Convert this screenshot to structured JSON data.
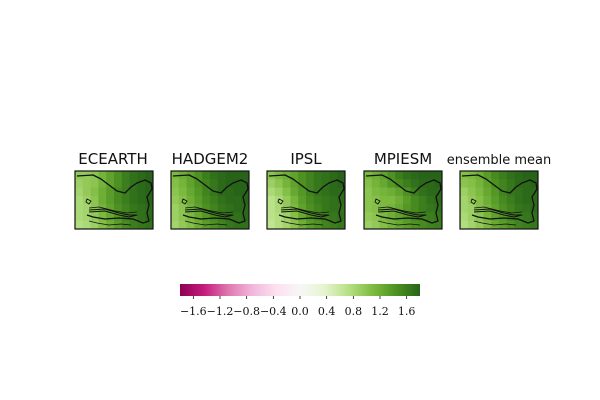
{
  "chart_data": {
    "type": "heatmap",
    "panels": [
      {
        "title": "ECEARTH",
        "grid": [
          [
            0.95,
            0.95,
            1.0,
            1.15,
            1.3,
            1.45,
            1.6,
            1.7,
            1.75,
            1.8
          ],
          [
            0.9,
            0.95,
            1.0,
            1.15,
            1.3,
            1.45,
            1.6,
            1.7,
            1.75,
            1.8
          ],
          [
            0.85,
            0.95,
            1.05,
            1.2,
            1.35,
            1.5,
            1.6,
            1.7,
            1.75,
            1.8
          ],
          [
            0.8,
            0.9,
            1.0,
            1.2,
            1.35,
            1.5,
            1.6,
            1.7,
            1.75,
            1.8
          ],
          [
            0.8,
            0.85,
            1.0,
            1.15,
            1.3,
            1.45,
            1.55,
            1.65,
            1.7,
            1.75
          ],
          [
            0.8,
            0.85,
            0.95,
            1.1,
            1.25,
            1.4,
            1.55,
            1.6,
            1.7,
            1.75
          ],
          [
            0.75,
            0.8,
            0.9,
            1.05,
            1.2,
            1.35,
            1.5,
            1.6,
            1.65,
            1.7
          ]
        ]
      },
      {
        "title": "HADGEM2",
        "grid": [
          [
            1.1,
            1.2,
            1.3,
            1.45,
            1.6,
            1.7,
            1.75,
            1.8,
            1.8,
            1.8
          ],
          [
            1.05,
            1.15,
            1.3,
            1.45,
            1.55,
            1.65,
            1.75,
            1.8,
            1.8,
            1.8
          ],
          [
            1.0,
            1.1,
            1.25,
            1.4,
            1.55,
            1.65,
            1.75,
            1.75,
            1.8,
            1.8
          ],
          [
            0.95,
            1.05,
            1.2,
            1.35,
            1.5,
            1.6,
            1.7,
            1.75,
            1.75,
            1.8
          ],
          [
            0.9,
            1.0,
            1.15,
            1.3,
            1.45,
            1.55,
            1.65,
            1.7,
            1.75,
            1.75
          ],
          [
            0.9,
            1.0,
            1.1,
            1.25,
            1.4,
            1.5,
            1.6,
            1.7,
            1.7,
            1.75
          ],
          [
            0.85,
            0.95,
            1.05,
            1.2,
            1.35,
            1.45,
            1.55,
            1.65,
            1.7,
            1.7
          ]
        ]
      },
      {
        "title": "IPSL",
        "grid": [
          [
            1.0,
            1.1,
            1.2,
            1.3,
            1.45,
            1.55,
            1.65,
            1.7,
            1.75,
            1.8
          ],
          [
            0.9,
            1.0,
            1.15,
            1.3,
            1.45,
            1.55,
            1.65,
            1.7,
            1.75,
            1.8
          ],
          [
            0.8,
            0.9,
            1.05,
            1.25,
            1.4,
            1.55,
            1.65,
            1.7,
            1.75,
            1.75
          ],
          [
            0.7,
            0.8,
            0.95,
            1.15,
            1.35,
            1.5,
            1.6,
            1.65,
            1.7,
            1.75
          ],
          [
            0.7,
            0.8,
            0.95,
            1.1,
            1.3,
            1.45,
            1.55,
            1.65,
            1.7,
            1.7
          ],
          [
            0.7,
            0.75,
            0.9,
            1.05,
            1.25,
            1.4,
            1.5,
            1.6,
            1.65,
            1.7
          ],
          [
            0.65,
            0.75,
            0.85,
            1.0,
            1.2,
            1.35,
            1.45,
            1.55,
            1.6,
            1.65
          ]
        ]
      },
      {
        "title": "MPIESM",
        "grid": [
          [
            1.1,
            1.2,
            1.3,
            1.45,
            1.6,
            1.7,
            1.75,
            1.8,
            1.8,
            1.8
          ],
          [
            1.05,
            1.15,
            1.25,
            1.4,
            1.5,
            1.6,
            1.7,
            1.75,
            1.75,
            1.8
          ],
          [
            1.0,
            1.1,
            1.15,
            1.2,
            1.3,
            1.45,
            1.6,
            1.7,
            1.75,
            1.75
          ],
          [
            1.0,
            1.05,
            1.1,
            1.1,
            1.2,
            1.35,
            1.5,
            1.6,
            1.7,
            1.75
          ],
          [
            1.0,
            1.05,
            1.1,
            1.15,
            1.25,
            1.4,
            1.5,
            1.6,
            1.65,
            1.7
          ],
          [
            0.95,
            1.0,
            1.1,
            1.2,
            1.3,
            1.4,
            1.5,
            1.55,
            1.6,
            1.65
          ],
          [
            0.9,
            0.95,
            1.05,
            1.15,
            1.25,
            1.35,
            1.45,
            1.5,
            1.55,
            1.6
          ]
        ]
      },
      {
        "title": "ensemble mean",
        "grid": [
          [
            1.05,
            1.1,
            1.2,
            1.35,
            1.5,
            1.6,
            1.7,
            1.75,
            1.8,
            1.8
          ],
          [
            1.0,
            1.05,
            1.15,
            1.3,
            1.45,
            1.55,
            1.65,
            1.75,
            1.75,
            1.8
          ],
          [
            0.9,
            1.0,
            1.1,
            1.25,
            1.4,
            1.55,
            1.65,
            1.7,
            1.75,
            1.75
          ],
          [
            0.85,
            0.95,
            1.05,
            1.2,
            1.35,
            1.5,
            1.6,
            1.7,
            1.75,
            1.75
          ],
          [
            0.85,
            0.9,
            1.05,
            1.15,
            1.3,
            1.45,
            1.55,
            1.65,
            1.7,
            1.75
          ],
          [
            0.8,
            0.9,
            1.0,
            1.15,
            1.3,
            1.4,
            1.55,
            1.6,
            1.65,
            1.7
          ],
          [
            0.75,
            0.85,
            0.95,
            1.1,
            1.25,
            1.35,
            1.45,
            1.55,
            1.6,
            1.65
          ]
        ]
      }
    ],
    "colorbar": {
      "colormap": "PiYG",
      "range": [
        -1.8,
        1.8
      ],
      "ticks": [
        -1.6,
        -1.2,
        -0.8,
        -0.4,
        0.0,
        0.4,
        0.8,
        1.2,
        1.6
      ],
      "tick_labels": [
        "−1.6",
        "−1.2",
        "−0.8",
        "−0.4",
        "0.0",
        "0.4",
        "0.8",
        "1.2",
        "1.6"
      ],
      "colors": [
        "#8e0152",
        "#c51b7d",
        "#de77ae",
        "#f1b6da",
        "#fde0ef",
        "#f7f7f7",
        "#e6f5d0",
        "#b8e186",
        "#7fbc41",
        "#4d9221",
        "#276419"
      ]
    }
  }
}
